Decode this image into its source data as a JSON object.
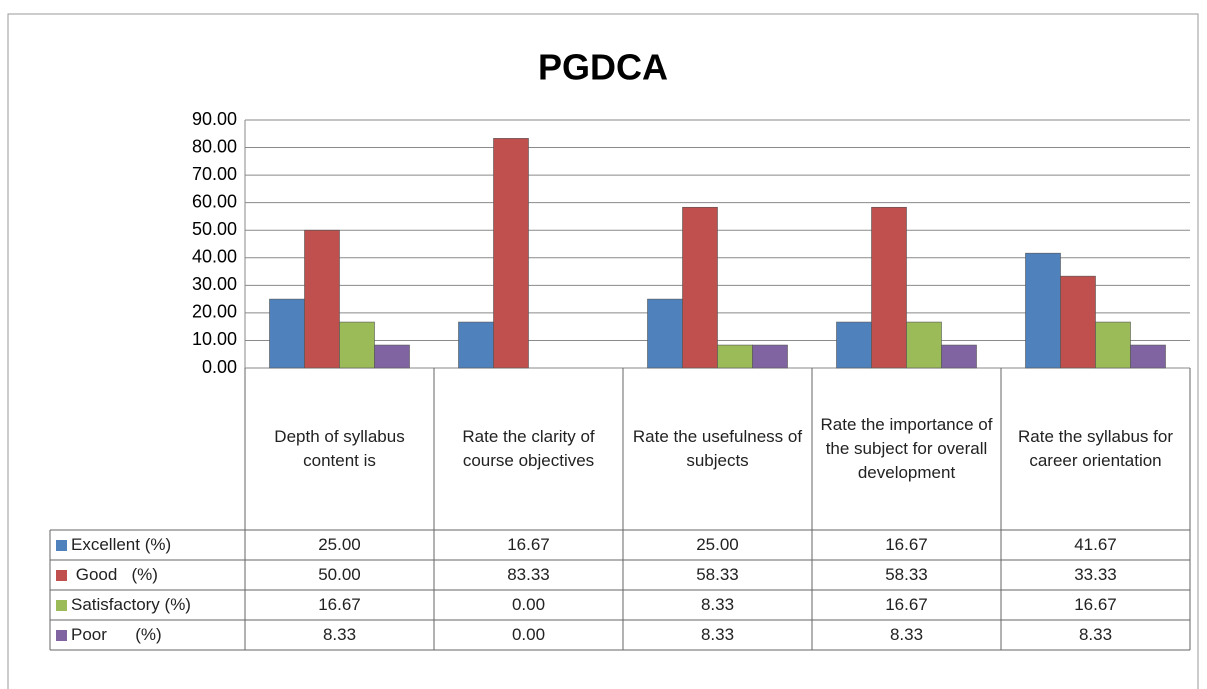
{
  "chart_data": {
    "type": "bar",
    "title": "PGDCA",
    "categories": [
      "Depth of syllabus content is",
      "Rate the clarity of course objectives",
      "Rate the usefulness of subjects",
      "Rate the importance of the subject for overall development",
      "Rate the syllabus for career orientation"
    ],
    "series": [
      {
        "name": "Excellent (%)",
        "color": "#4f81bd",
        "values": [
          25,
          16.67,
          25,
          16.67,
          41.67
        ],
        "value_labels": [
          "25.00",
          "16.67",
          "25.00",
          "16.67",
          "41.67"
        ]
      },
      {
        "name": " Good   (%)",
        "color": "#c0504d",
        "values": [
          50,
          83.33,
          58.33,
          58.33,
          33.33
        ],
        "value_labels": [
          "50.00",
          "83.33",
          "58.33",
          "58.33",
          "33.33"
        ]
      },
      {
        "name": "Satisfactory (%)",
        "color": "#9bbb59",
        "values": [
          16.67,
          0,
          8.33,
          16.67,
          16.67
        ],
        "value_labels": [
          "16.67",
          "0.00",
          "8.33",
          "16.67",
          "16.67"
        ]
      },
      {
        "name": "Poor      (%)",
        "color": "#8064a2",
        "values": [
          8.33,
          0,
          8.33,
          8.33,
          8.33
        ],
        "value_labels": [
          "8.33",
          "0.00",
          "8.33",
          "8.33",
          "8.33"
        ]
      }
    ],
    "ylim": [
      0,
      90
    ],
    "yticks": [
      {
        "value": 0,
        "label": "0.00"
      },
      {
        "value": 10,
        "label": "10.00"
      },
      {
        "value": 20,
        "label": "20.00"
      },
      {
        "value": 30,
        "label": "30.00"
      },
      {
        "value": 40,
        "label": "40.00"
      },
      {
        "value": 50,
        "label": "50.00"
      },
      {
        "value": 60,
        "label": "60.00"
      },
      {
        "value": 70,
        "label": "70.00"
      },
      {
        "value": 80,
        "label": "80.00"
      },
      {
        "value": 90,
        "label": "90.00"
      }
    ],
    "grid": true
  }
}
